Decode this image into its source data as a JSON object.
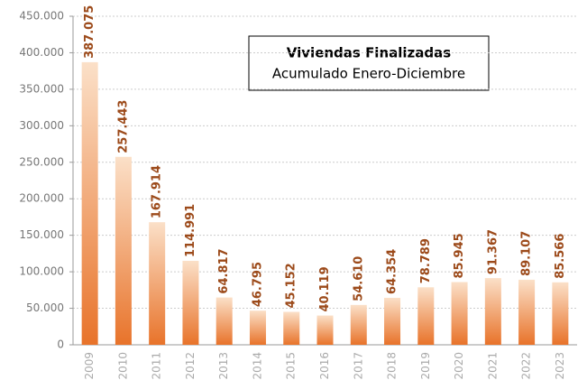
{
  "chart_data": {
    "type": "bar",
    "title": "Viviendas Finalizadas",
    "subtitle": "Acumulado Enero-Diciembre",
    "categories": [
      "2009",
      "2010",
      "2011",
      "2012",
      "2013",
      "2014",
      "2015",
      "2016",
      "2017",
      "2018",
      "2019",
      "2020",
      "2021",
      "2022",
      "2023"
    ],
    "values": [
      387075,
      257443,
      167914,
      114991,
      64817,
      46795,
      45152,
      40119,
      54610,
      64354,
      78789,
      85945,
      91367,
      89107,
      85566
    ],
    "value_labels": [
      "387.075",
      "257.443",
      "167.914",
      "114.991",
      "64.817",
      "46.795",
      "45.152",
      "40.119",
      "54.610",
      "64.354",
      "78.789",
      "85.945",
      "91.367",
      "89.107",
      "85.566"
    ],
    "color": "#e8732a",
    "ylim": [
      0,
      450000
    ],
    "yticks": [
      {
        "value": 0,
        "label": "0"
      },
      {
        "value": 50000,
        "label": "50.000"
      },
      {
        "value": 100000,
        "label": "100.000"
      },
      {
        "value": 150000,
        "label": "150.000"
      },
      {
        "value": 200000,
        "label": "200.000"
      },
      {
        "value": 250000,
        "label": "250.000"
      },
      {
        "value": 300000,
        "label": "300.000"
      },
      {
        "value": 350000,
        "label": "350.000"
      },
      {
        "value": 400000,
        "label": "400.000"
      },
      {
        "value": 450000,
        "label": "450.000"
      }
    ],
    "grid": true
  }
}
